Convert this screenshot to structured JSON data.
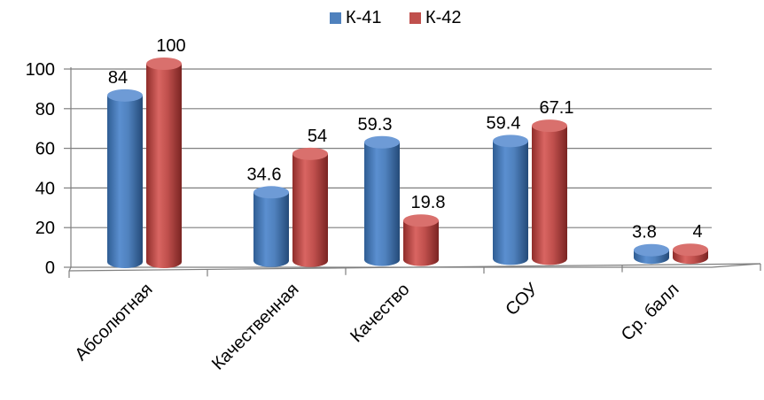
{
  "chart_data": {
    "type": "bar",
    "title": "",
    "xlabel": "",
    "ylabel": "",
    "categories": [
      "Абсолютная",
      "Качественная",
      "Качество",
      "СОУ",
      "Ср. балл"
    ],
    "series": [
      {
        "name": "К-41",
        "values": [
          84,
          34.6,
          59.3,
          59.4,
          3.8
        ],
        "color": "#4f81bd"
      },
      {
        "name": "К-42",
        "values": [
          100,
          54,
          19.8,
          67.1,
          4
        ],
        "color": "#c0504d"
      }
    ],
    "data_labels": [
      [
        "84",
        "34.6",
        "59.3",
        "59.4",
        "3.8"
      ],
      [
        "100",
        "54",
        "19.8",
        "67.1",
        "4"
      ]
    ],
    "yticks": [
      "0",
      "20",
      "40",
      "60",
      "80",
      "100"
    ],
    "ylim": [
      0,
      100
    ],
    "grid": true,
    "legend_position": "top-center",
    "style": "3d-cylinder"
  }
}
